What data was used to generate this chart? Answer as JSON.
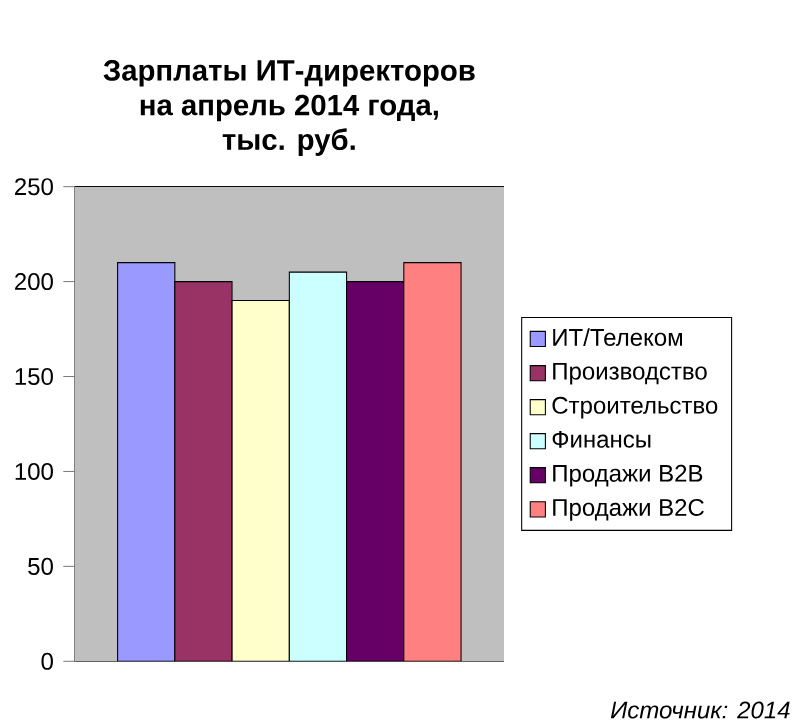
{
  "chart_data": {
    "type": "bar",
    "title": "Зарплаты ИТ-директоров\nна апрель 2014 года,\nтыс. руб.",
    "categories": [
      null
    ],
    "series": [
      {
        "name": "ИТ/Телеком",
        "color": "#9999ff",
        "values": [
          210
        ]
      },
      {
        "name": "Производство",
        "color": "#993366",
        "values": [
          200
        ]
      },
      {
        "name": "Строительство",
        "color": "#ffffcc",
        "values": [
          190
        ]
      },
      {
        "name": "Финансы",
        "color": "#ccffff",
        "values": [
          205
        ]
      },
      {
        "name": "Продажи B2B",
        "color": "#660066",
        "values": [
          200
        ]
      },
      {
        "name": "Продажи B2C",
        "color": "#ff8080",
        "values": [
          210
        ]
      }
    ],
    "ylim": [
      0,
      250
    ],
    "yticks": [
      0,
      50,
      100,
      150,
      200,
      250
    ],
    "grid": "y",
    "legend": "right",
    "annotations": [
      "Источник: 2014"
    ]
  }
}
